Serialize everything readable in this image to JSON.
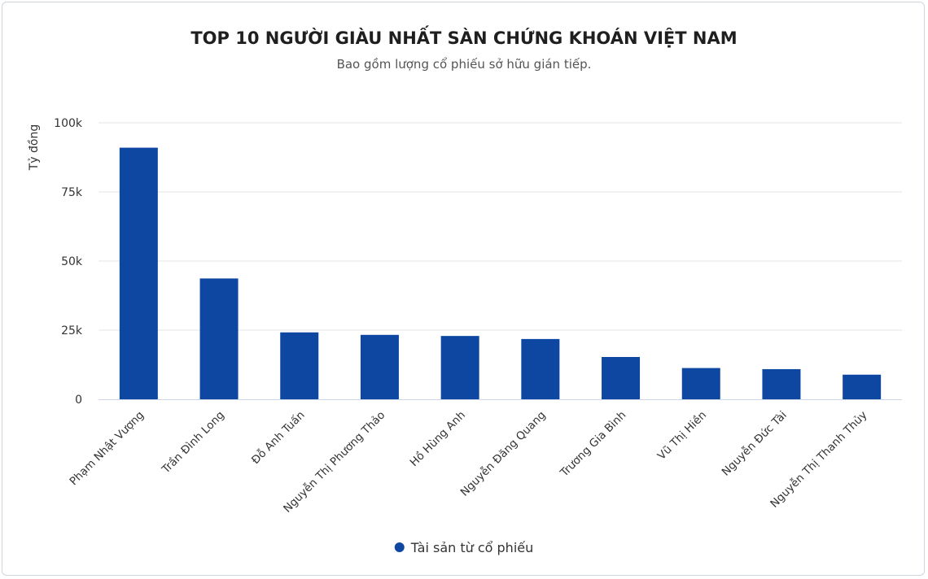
{
  "chart_data": {
    "type": "bar",
    "title": "TOP 10 NGƯỜI GIÀU NHẤT SÀN CHỨNG KHOÁN VIỆT NAM",
    "subtitle": "Bao gồm lượng cổ phiếu sở hữu gián tiếp.",
    "ylabel": "Tỷ đồng",
    "xlabel": "",
    "ylim": [
      0,
      100000
    ],
    "yticks": [
      0,
      25000,
      50000,
      75000,
      100000
    ],
    "ytick_labels": [
      "0",
      "25k",
      "50k",
      "75k",
      "100k"
    ],
    "grid": true,
    "categories": [
      "Phạm Nhật Vượng",
      "Trần Đình Long",
      "Đỗ Anh Tuấn",
      "Nguyễn Thị Phương Thảo",
      "Hồ Hùng Anh",
      "Nguyễn Đăng Quang",
      "Trương Gia Bình",
      "Vũ Thị Hiền",
      "Nguyễn Đức Tài",
      "Nguyễn Thị Thanh Thủy"
    ],
    "series": [
      {
        "name": "Tài sản từ cổ phiếu",
        "color": "#0d47a1",
        "values": [
          91000,
          43700,
          24200,
          23300,
          22900,
          21800,
          15300,
          11300,
          10900,
          8900
        ]
      }
    ],
    "legend_position": "bottom-center"
  }
}
